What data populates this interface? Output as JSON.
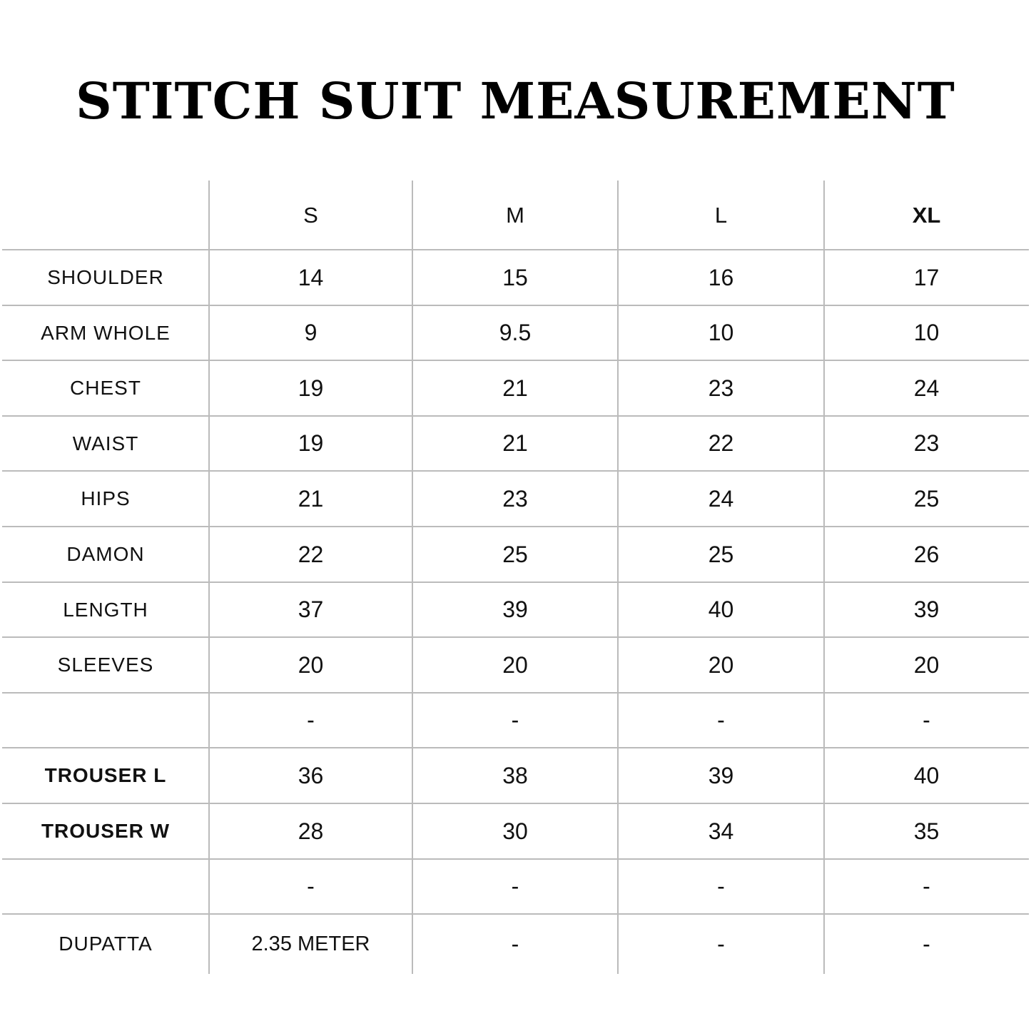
{
  "title": "STITCH SUIT MEASUREMENT",
  "table": {
    "columns": [
      "",
      "S",
      "M",
      "L",
      "XL"
    ],
    "rows": [
      {
        "label": "SHOULDER",
        "values": [
          "14",
          "15",
          "16",
          "17"
        ]
      },
      {
        "label": "ARM WHOLE",
        "values": [
          "9",
          "9.5",
          "10",
          "10"
        ]
      },
      {
        "label": "CHEST",
        "values": [
          "19",
          "21",
          "23",
          "24"
        ]
      },
      {
        "label": "WAIST",
        "values": [
          "19",
          "21",
          "22",
          "23"
        ]
      },
      {
        "label": "HIPS",
        "values": [
          "21",
          "23",
          "24",
          "25"
        ]
      },
      {
        "label": "DAMON",
        "values": [
          "22",
          "25",
          "25",
          "26"
        ]
      },
      {
        "label": "LENGTH",
        "values": [
          "37",
          "39",
          "40",
          "39"
        ]
      },
      {
        "label": "SLEEVES",
        "values": [
          "20",
          "20",
          "20",
          "20"
        ]
      },
      {
        "label": "",
        "values": [
          "-",
          "-",
          "-",
          "-"
        ]
      },
      {
        "label": "TROUSER L",
        "values": [
          "36",
          "38",
          "39",
          "40"
        ]
      },
      {
        "label": "TROUSER W",
        "values": [
          "28",
          "30",
          "34",
          "35"
        ]
      },
      {
        "label": "",
        "values": [
          "-",
          "-",
          "-",
          "-"
        ]
      },
      {
        "label": "DUPATTA",
        "values": [
          "2.35 METER",
          "-",
          "-",
          "-"
        ]
      }
    ]
  }
}
